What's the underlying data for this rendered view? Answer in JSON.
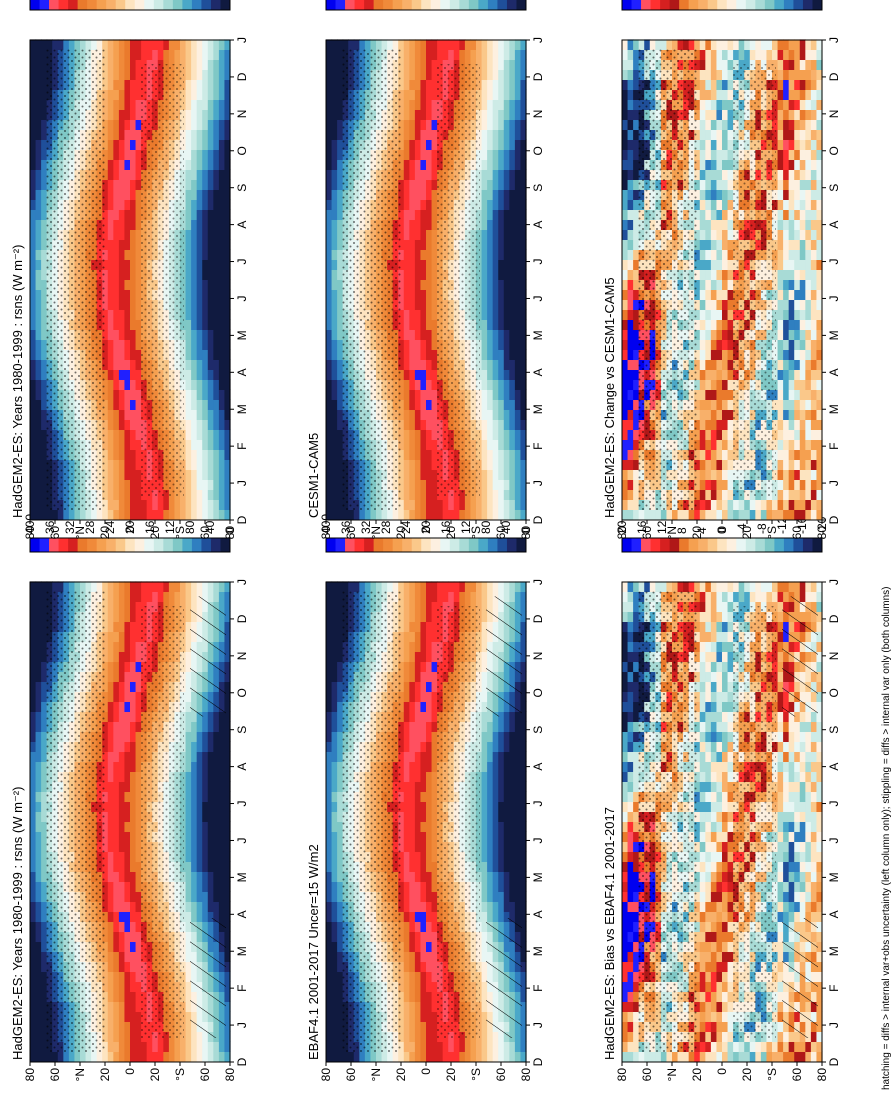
{
  "figure": {
    "footer": "hatching = diffs > internal var+obs uncertainty (left column only); stippling = diffs > internal var only (both columns)"
  },
  "chart_data": [
    {
      "id": "p1",
      "type": "heatmap",
      "title": "HadGEM2-ES: Years 1980-1999 : rsns (W m⁻²)",
      "x": [
        "D",
        "J",
        "F",
        "M",
        "A",
        "M",
        "J",
        "J",
        "A",
        "S",
        "O",
        "N",
        "D",
        "J"
      ],
      "y_ticks": [
        "80",
        "60",
        "°N",
        "20",
        "0",
        "20",
        "°S",
        "60",
        "80"
      ],
      "colorbar": {
        "ticks": [
          "400",
          "360",
          "320",
          "280",
          "240",
          "200",
          "160",
          "120",
          "80",
          "40",
          "0"
        ]
      },
      "pattern": "climatology",
      "hatching": true,
      "stippling": true
    },
    {
      "id": "p2",
      "type": "heatmap",
      "title": "HadGEM2-ES: Years 1980-1999 : rsns (W m⁻²)",
      "x": [
        "D",
        "J",
        "F",
        "M",
        "A",
        "M",
        "J",
        "J",
        "A",
        "S",
        "O",
        "N",
        "D",
        "J"
      ],
      "y_ticks": [
        "80",
        "60",
        "°N",
        "20",
        "0",
        "20",
        "°S",
        "60",
        "80"
      ],
      "colorbar": {
        "ticks": [
          "400",
          "360",
          "320",
          "280",
          "240",
          "200",
          "160",
          "120",
          "80",
          "40",
          "0"
        ]
      },
      "pattern": "climatology",
      "hatching": false,
      "stippling": true
    },
    {
      "id": "p3",
      "type": "heatmap",
      "title": "EBAF4.1 2001-2017 Uncer=15 W/m2",
      "x": [
        "D",
        "J",
        "F",
        "M",
        "A",
        "M",
        "J",
        "J",
        "A",
        "S",
        "O",
        "N",
        "D",
        "J"
      ],
      "y_ticks": [
        "80",
        "60",
        "°N",
        "20",
        "0",
        "20",
        "°S",
        "60",
        "80"
      ],
      "colorbar": {
        "ticks": [
          "400",
          "360",
          "320",
          "280",
          "240",
          "200",
          "160",
          "120",
          "80",
          "40",
          "0"
        ]
      },
      "pattern": "climatology",
      "hatching": true,
      "stippling": true
    },
    {
      "id": "p4",
      "type": "heatmap",
      "title": "CESM1-CAM5",
      "x": [
        "D",
        "J",
        "F",
        "M",
        "A",
        "M",
        "J",
        "J",
        "A",
        "S",
        "O",
        "N",
        "D",
        "J"
      ],
      "y_ticks": [
        "80",
        "60",
        "°N",
        "20",
        "0",
        "20",
        "°S",
        "60",
        "80"
      ],
      "colorbar": {
        "ticks": [
          "400",
          "360",
          "320",
          "280",
          "240",
          "200",
          "160",
          "120",
          "80",
          "40",
          "0"
        ]
      },
      "pattern": "climatology",
      "hatching": false,
      "stippling": true
    },
    {
      "id": "p5",
      "type": "heatmap",
      "title": "HadGEM2-ES: Bias vs EBAF4.1 2001-2017",
      "x": [
        "D",
        "J",
        "F",
        "M",
        "A",
        "M",
        "J",
        "J",
        "A",
        "S",
        "O",
        "N",
        "D",
        "J"
      ],
      "y_ticks": [
        "80",
        "60",
        "°N",
        "20",
        "0",
        "20",
        "°S",
        "60",
        "80"
      ],
      "colorbar": {
        "ticks": [
          "20",
          "16",
          "12",
          "8",
          "4",
          "0",
          "-4",
          "-8",
          "-12",
          "-16",
          "-20"
        ]
      },
      "pattern": "bias",
      "hatching": true,
      "stippling": true
    },
    {
      "id": "p6",
      "type": "heatmap",
      "title": "HadGEM2-ES: Change vs CESM1-CAM5",
      "x": [
        "D",
        "J",
        "F",
        "M",
        "A",
        "M",
        "J",
        "J",
        "A",
        "S",
        "O",
        "N",
        "D",
        "J"
      ],
      "y_ticks": [
        "80",
        "60",
        "°N",
        "20",
        "0",
        "20",
        "°S",
        "60",
        "80"
      ],
      "colorbar": {
        "ticks": [
          "20",
          "16",
          "12",
          "8",
          "4",
          "0",
          "-4",
          "-8",
          "-12",
          "-16",
          "-20"
        ]
      },
      "pattern": "change",
      "hatching": false,
      "stippling": true
    }
  ],
  "colors": {
    "palette": [
      "#ffffff",
      "#1a1aa8",
      "#0000f0",
      "#2020ff",
      "#3a3aff",
      "#ff5060",
      "#ff3030",
      "#d62020",
      "#b01818",
      "#ea7a2c",
      "#f08a3a",
      "#f5a050",
      "#f8b06a",
      "#fac88a",
      "#fde4c0",
      "#fdf0e0",
      "#e8f6f4",
      "#cdebe6",
      "#a8dbd6",
      "#7fc8c6",
      "#4aa8c8",
      "#2f7fc0",
      "#1f4f9a",
      "#1e2a6a",
      "#101a40",
      "#000000"
    ]
  }
}
